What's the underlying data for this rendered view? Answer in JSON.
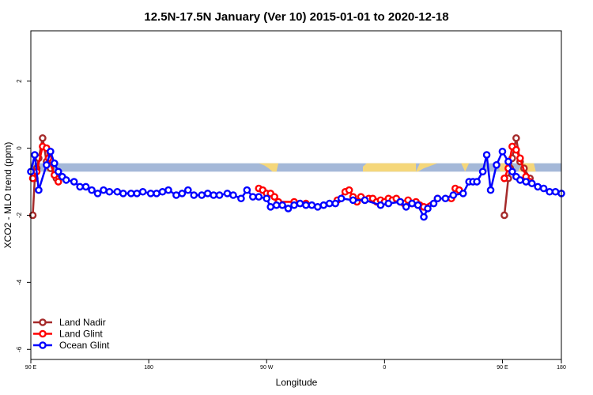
{
  "chart_data": {
    "type": "line",
    "title": "12.5N-17.5N January (Ver 10)   2015-01-01 to 2020-12-18",
    "xlabel": "Longitude",
    "ylabel": "XCO2 - MLO trend (ppm)",
    "xlim": [
      -90,
      180
    ],
    "ylim": [
      -6.3,
      3.5
    ],
    "x_ticks": [
      {
        "value": -90,
        "label": "90 E"
      },
      {
        "value": -30,
        "label": "180"
      },
      {
        "value": 30,
        "label": "90 W"
      },
      {
        "value": 90,
        "label": "0"
      },
      {
        "value": 150,
        "label": "90 E"
      },
      {
        "value": 210,
        "label": "180"
      }
    ],
    "y_ticks": [
      {
        "value": 2,
        "label": "2"
      },
      {
        "value": 0,
        "label": "0"
      },
      {
        "value": -2,
        "label": "-2"
      },
      {
        "value": -4,
        "label": "-4"
      },
      {
        "value": -6,
        "label": "-6"
      }
    ],
    "legend_position": "bottom-left",
    "band": {
      "y_range": [
        -0.7,
        -0.45
      ],
      "color": "#a4b8d8"
    },
    "land_mask": {
      "color": "#f5d77a",
      "segments": [
        [
          [
            26,
            -0.45
          ],
          [
            29,
            -0.52
          ],
          [
            31,
            -0.6
          ],
          [
            33,
            -0.7
          ],
          [
            35,
            -0.7
          ],
          [
            36,
            -0.45
          ]
        ],
        [
          [
            79,
            -0.7
          ],
          [
            79,
            -0.55
          ],
          [
            81,
            -0.45
          ],
          [
            106,
            -0.45
          ],
          [
            106,
            -0.7
          ]
        ],
        [
          [
            106,
            -0.7
          ],
          [
            108,
            -0.45
          ],
          [
            117,
            -0.45
          ],
          [
            110,
            -0.6
          ],
          [
            107,
            -0.7
          ]
        ],
        [
          [
            129,
            -0.45
          ],
          [
            131,
            -0.7
          ],
          [
            133,
            -0.45
          ]
        ],
        [
          [
            147,
            -0.45
          ],
          [
            149,
            -0.7
          ],
          [
            151,
            -0.7
          ],
          [
            154,
            -0.45
          ]
        ],
        [
          [
            158,
            -0.7
          ],
          [
            160,
            -0.45
          ],
          [
            166,
            -0.45
          ],
          [
            167,
            -0.7
          ]
        ]
      ]
    },
    "series": [
      {
        "name": "Land Nadir",
        "color": "#a52a2a",
        "points": [
          [
            -89,
            -2.0
          ],
          [
            -88,
            -0.9
          ],
          [
            -87,
            -0.6
          ],
          [
            -86,
            -0.3
          ],
          [
            -84,
            0.3
          ],
          [
            -82,
            -0.4
          ],
          [
            -80,
            -0.6
          ],
          [
            -77,
            -0.9
          ],
          [
            151,
            -2.0
          ],
          [
            153,
            -0.9
          ],
          [
            154,
            -0.6
          ],
          [
            155,
            -0.3
          ],
          [
            157,
            0.3
          ],
          [
            159,
            -0.4
          ],
          [
            161,
            -0.6
          ],
          [
            164,
            -0.9
          ]
        ]
      },
      {
        "name": "Land Glint",
        "color": "#ff0000",
        "points": [
          [
            -89,
            -0.9
          ],
          [
            -87,
            -0.7
          ],
          [
            -84,
            0.05
          ],
          [
            -82,
            0.0
          ],
          [
            -81,
            -0.3
          ],
          [
            -78,
            -0.8
          ],
          [
            -76,
            -1.0
          ],
          [
            26,
            -1.2
          ],
          [
            28,
            -1.25
          ],
          [
            30,
            -1.35
          ],
          [
            32,
            -1.35
          ],
          [
            34,
            -1.45
          ],
          [
            36,
            -1.6
          ],
          [
            44,
            -1.6
          ],
          [
            50,
            -1.65
          ],
          [
            66,
            -1.55
          ],
          [
            70,
            -1.3
          ],
          [
            72,
            -1.25
          ],
          [
            74,
            -1.45
          ],
          [
            76,
            -1.6
          ],
          [
            78,
            -1.45
          ],
          [
            80,
            -1.55
          ],
          [
            82,
            -1.5
          ],
          [
            84,
            -1.5
          ],
          [
            86,
            -1.6
          ],
          [
            88,
            -1.55
          ],
          [
            90,
            -1.6
          ],
          [
            92,
            -1.5
          ],
          [
            94,
            -1.55
          ],
          [
            96,
            -1.5
          ],
          [
            98,
            -1.6
          ],
          [
            100,
            -1.65
          ],
          [
            102,
            -1.55
          ],
          [
            104,
            -1.65
          ],
          [
            106,
            -1.6
          ],
          [
            108,
            -1.7
          ],
          [
            110,
            -1.75
          ],
          [
            117,
            -1.5
          ],
          [
            124,
            -1.5
          ],
          [
            126,
            -1.2
          ],
          [
            128,
            -1.25
          ],
          [
            151,
            -0.9
          ],
          [
            153,
            -0.6
          ],
          [
            155,
            0.05
          ],
          [
            157,
            -0.05
          ],
          [
            159,
            -0.3
          ],
          [
            162,
            -0.85
          ],
          [
            164,
            -1.0
          ]
        ]
      },
      {
        "name": "Ocean Glint",
        "color": "#0000ff",
        "points": [
          [
            -90,
            -0.7
          ],
          [
            -88,
            -0.2
          ],
          [
            -86,
            -1.25
          ],
          [
            -82,
            -0.5
          ],
          [
            -80,
            -0.1
          ],
          [
            -78,
            -0.45
          ],
          [
            -76,
            -0.7
          ],
          [
            -74,
            -0.85
          ],
          [
            -72,
            -0.95
          ],
          [
            -68,
            -1.0
          ],
          [
            -65,
            -1.15
          ],
          [
            -62,
            -1.15
          ],
          [
            -59,
            -1.25
          ],
          [
            -56,
            -1.35
          ],
          [
            -53,
            -1.25
          ],
          [
            -50,
            -1.3
          ],
          [
            -46,
            -1.3
          ],
          [
            -43,
            -1.35
          ],
          [
            -39,
            -1.35
          ],
          [
            -36,
            -1.35
          ],
          [
            -33,
            -1.3
          ],
          [
            -29,
            -1.35
          ],
          [
            -26,
            -1.35
          ],
          [
            -23,
            -1.3
          ],
          [
            -20,
            -1.25
          ],
          [
            -16,
            -1.4
          ],
          [
            -13,
            -1.35
          ],
          [
            -10,
            -1.25
          ],
          [
            -7,
            -1.4
          ],
          [
            -3,
            -1.4
          ],
          [
            0,
            -1.35
          ],
          [
            3,
            -1.4
          ],
          [
            6,
            -1.4
          ],
          [
            10,
            -1.35
          ],
          [
            13,
            -1.4
          ],
          [
            17,
            -1.5
          ],
          [
            20,
            -1.25
          ],
          [
            23,
            -1.45
          ],
          [
            26,
            -1.45
          ],
          [
            30,
            -1.5
          ],
          [
            32,
            -1.75
          ],
          [
            35,
            -1.7
          ],
          [
            38,
            -1.7
          ],
          [
            41,
            -1.8
          ],
          [
            44,
            -1.7
          ],
          [
            47,
            -1.65
          ],
          [
            50,
            -1.7
          ],
          [
            53,
            -1.7
          ],
          [
            56,
            -1.75
          ],
          [
            59,
            -1.7
          ],
          [
            62,
            -1.65
          ],
          [
            65,
            -1.65
          ],
          [
            68,
            -1.5
          ],
          [
            74,
            -1.55
          ],
          [
            80,
            -1.55
          ],
          [
            88,
            -1.7
          ],
          [
            92,
            -1.65
          ],
          [
            98,
            -1.6
          ],
          [
            101,
            -1.75
          ],
          [
            104,
            -1.65
          ],
          [
            107,
            -1.7
          ],
          [
            110,
            -2.05
          ],
          [
            112,
            -1.8
          ],
          [
            115,
            -1.65
          ],
          [
            117,
            -1.5
          ],
          [
            121,
            -1.5
          ],
          [
            125,
            -1.4
          ],
          [
            130,
            -1.35
          ],
          [
            133,
            -1.0
          ],
          [
            135,
            -1.0
          ],
          [
            137,
            -1.0
          ],
          [
            140,
            -0.7
          ],
          [
            142,
            -0.2
          ],
          [
            144,
            -1.25
          ],
          [
            147,
            -0.5
          ],
          [
            150,
            -0.1
          ],
          [
            153,
            -0.4
          ],
          [
            155,
            -0.7
          ],
          [
            157,
            -0.85
          ],
          [
            159,
            -0.95
          ],
          [
            162,
            -1.0
          ],
          [
            165,
            -1.05
          ],
          [
            168,
            -1.15
          ],
          [
            171,
            -1.2
          ],
          [
            174,
            -1.3
          ],
          [
            177,
            -1.3
          ],
          [
            180,
            -1.35
          ],
          [
            183,
            -1.3
          ],
          [
            187,
            -1.35
          ],
          [
            190,
            -1.3
          ],
          [
            194,
            -1.3
          ],
          [
            197,
            -1.35
          ],
          [
            201,
            -1.35
          ],
          [
            205,
            -1.35
          ],
          [
            208,
            -1.35
          ],
          [
            210,
            -1.4
          ]
        ]
      }
    ]
  }
}
